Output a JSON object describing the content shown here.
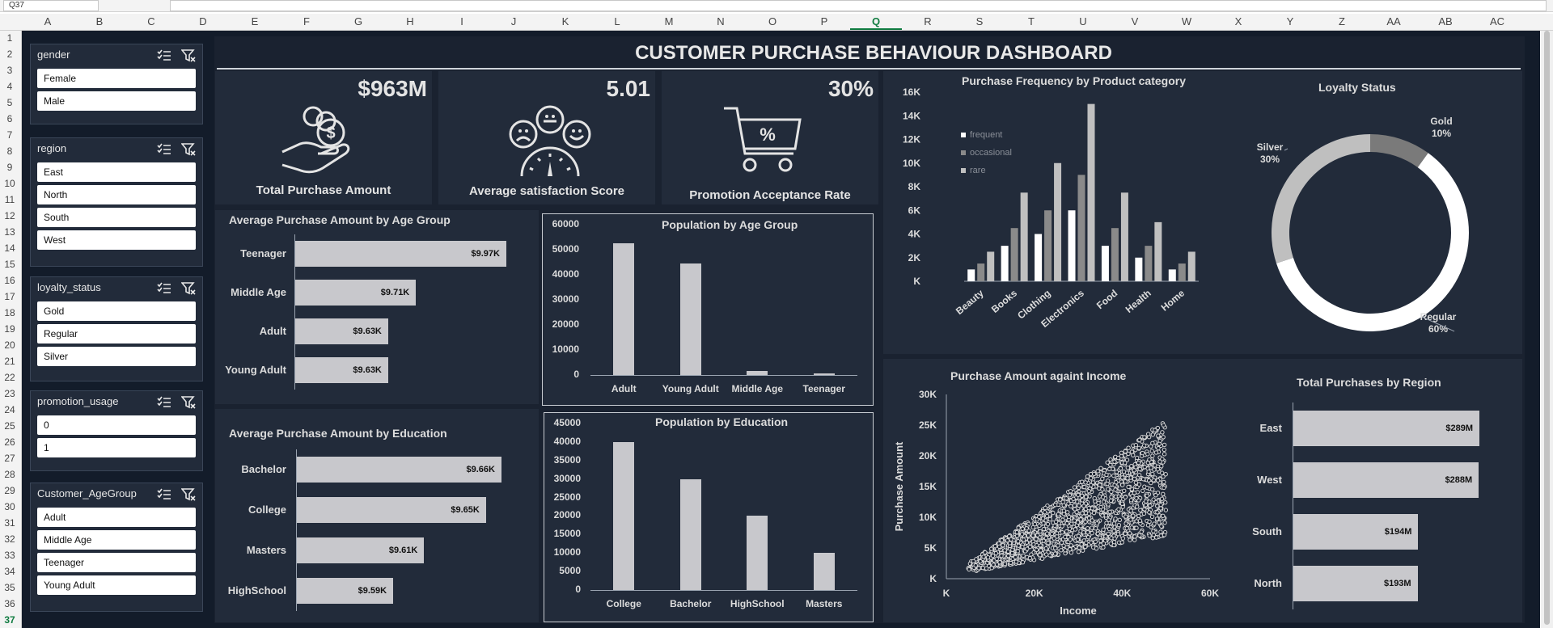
{
  "excel": {
    "name_box": "Q37",
    "columns": [
      "A",
      "B",
      "C",
      "D",
      "E",
      "F",
      "G",
      "H",
      "I",
      "J",
      "K",
      "L",
      "M",
      "N",
      "O",
      "P",
      "Q",
      "R",
      "S",
      "T",
      "U",
      "V",
      "W",
      "X",
      "Y",
      "Z",
      "AA",
      "AB",
      "AC"
    ],
    "selected_column": "Q",
    "rows": [
      "1",
      "2",
      "3",
      "4",
      "5",
      "6",
      "7",
      "8",
      "9",
      "10",
      "11",
      "12",
      "13",
      "14",
      "15",
      "16",
      "17",
      "18",
      "19",
      "20",
      "21",
      "22",
      "23",
      "24",
      "25",
      "26",
      "27",
      "28",
      "29",
      "30",
      "31",
      "32",
      "33",
      "34",
      "35",
      "36",
      "37"
    ],
    "selected_row": "37"
  },
  "slicers": [
    {
      "title": "gender",
      "items": [
        "Female",
        "Male"
      ]
    },
    {
      "title": "region",
      "items": [
        "East",
        "North",
        "South",
        "West"
      ]
    },
    {
      "title": "loyalty_status",
      "items": [
        "Gold",
        "Regular",
        "Silver"
      ]
    },
    {
      "title": "promotion_usage",
      "items": [
        "0",
        "1"
      ]
    },
    {
      "title": "Customer_AgeGroup",
      "items": [
        "Adult",
        "Middle Age",
        "Teenager",
        "Young Adult"
      ]
    }
  ],
  "dashboard": {
    "title": "CUSTOMER PURCHASE BEHAVIOUR DASHBOARD",
    "kpis": [
      {
        "value": "$963M",
        "label": "Total Purchase Amount",
        "icon": "money-hand-icon"
      },
      {
        "value": "5.01",
        "label": "Average satisfaction Score",
        "icon": "satisfaction-gauge-icon"
      },
      {
        "value": "30%",
        "label": "Promotion Acceptance Rate",
        "icon": "shopping-cart-percent-icon"
      }
    ],
    "colors": {
      "background": "#131c2a",
      "panel": "#222b3a",
      "bar": "#c8c8cc"
    }
  },
  "chart_data": [
    {
      "type": "bar",
      "orientation": "horizontal",
      "title": "Average Purchase Amount by Age Group",
      "categories": [
        "Teenager",
        "Middle Age",
        "Adult",
        "Young Adult"
      ],
      "values": [
        9970,
        9710,
        9630,
        9630
      ],
      "data_labels": [
        "$9.97K",
        "$9.71K",
        "$9.63K",
        "$9.63K"
      ]
    },
    {
      "type": "bar",
      "title": "Population by Age Group",
      "categories": [
        "Adult",
        "Young Adult",
        "Middle Age",
        "Teenager"
      ],
      "values": [
        52500,
        44500,
        1500,
        800
      ],
      "yticks": [
        "60000",
        "50000",
        "40000",
        "30000",
        "20000",
        "10000",
        "0"
      ],
      "ylim": [
        0,
        60000
      ]
    },
    {
      "type": "bar",
      "orientation": "horizontal",
      "title": "Average Purchase Amount by Education",
      "categories": [
        "Bachelor",
        "College",
        "Masters",
        "HighSchool"
      ],
      "values": [
        9660,
        9650,
        9610,
        9590
      ],
      "data_labels": [
        "$9.66K",
        "$9.65K",
        "$9.61K",
        "$9.59K"
      ]
    },
    {
      "type": "bar",
      "title": "Population by Education",
      "categories": [
        "College",
        "Bachelor",
        "HighSchool",
        "Masters"
      ],
      "values": [
        40000,
        30000,
        20000,
        10000
      ],
      "yticks": [
        "45000",
        "40000",
        "35000",
        "30000",
        "25000",
        "20000",
        "15000",
        "10000",
        "5000",
        "0"
      ],
      "ylim": [
        0,
        45000
      ]
    },
    {
      "type": "bar",
      "title": "Purchase Frequency by Product category",
      "categories": [
        "Beauty",
        "Books",
        "Clothing",
        "Electronics",
        "Food",
        "Health",
        "Home"
      ],
      "series": [
        {
          "name": "frequent",
          "values": [
            1000,
            3000,
            4000,
            6000,
            3000,
            2000,
            1000
          ],
          "color": "#ffffff"
        },
        {
          "name": "occasional",
          "values": [
            1500,
            4500,
            6000,
            9000,
            4500,
            3000,
            1500
          ],
          "color": "#8a8a8a"
        },
        {
          "name": "rare",
          "values": [
            2500,
            7500,
            10000,
            15000,
            7500,
            5000,
            2500
          ],
          "color": "#c0c0c0"
        }
      ],
      "yticks": [
        "16K",
        "14K",
        "12K",
        "10K",
        "8K",
        "6K",
        "4K",
        "2K",
        "K"
      ],
      "ylim": [
        0,
        16000
      ]
    },
    {
      "type": "pie",
      "subtype": "donut",
      "title": "Loyalty Status",
      "labels": [
        "Gold",
        "Regular",
        "Silver"
      ],
      "values": [
        10,
        60,
        30
      ],
      "data_labels": [
        "10%",
        "60%",
        "30%"
      ],
      "colors": [
        "#7a7a7a",
        "#ffffff",
        "#bfbfbf"
      ]
    },
    {
      "type": "scatter",
      "title": "Purchase Amount againt Income",
      "xlabel": "Income",
      "ylabel": "Purchase Amount",
      "xticks": [
        "K",
        "20K",
        "40K",
        "60K"
      ],
      "yticks": [
        "30K",
        "25K",
        "20K",
        "15K",
        "10K",
        "5K",
        "K"
      ],
      "xlim": [
        0,
        60000
      ],
      "ylim": [
        0,
        30000
      ],
      "trend": {
        "x_range": [
          5000,
          50000
        ],
        "lower_y_at_x": [
          [
            5000,
            1000
          ],
          [
            50000,
            7000
          ]
        ],
        "upper_y_at_x": [
          [
            5000,
            2500
          ],
          [
            50000,
            26000
          ]
        ]
      }
    },
    {
      "type": "bar",
      "orientation": "horizontal",
      "title": "Total Purchases by Region",
      "categories": [
        "East",
        "West",
        "South",
        "North"
      ],
      "values": [
        289,
        288,
        194,
        193
      ],
      "data_labels": [
        "$289M",
        "$288M",
        "$194M",
        "$193M"
      ]
    }
  ]
}
